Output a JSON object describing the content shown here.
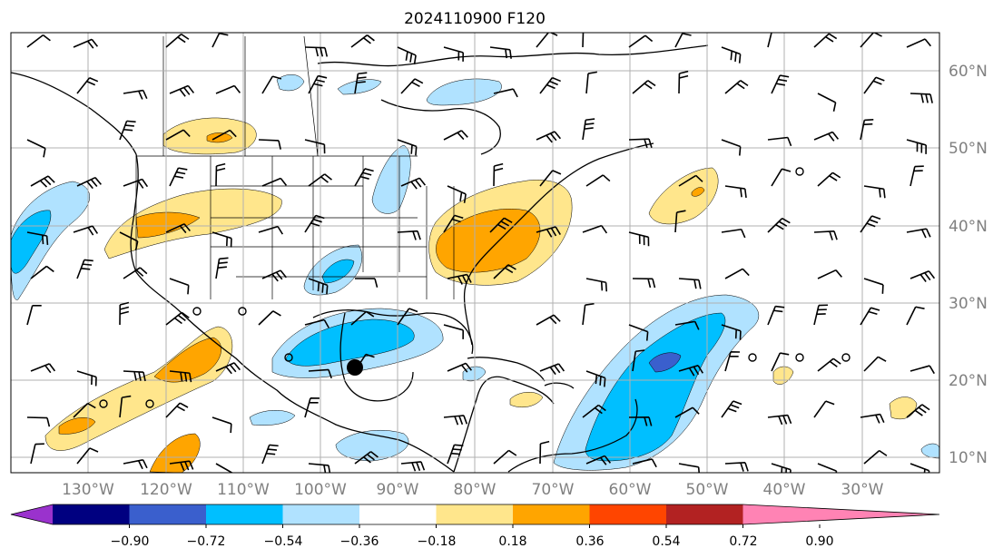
{
  "title": "2024110900 F120",
  "lat_labels": [
    "60°N",
    "50°N",
    "40°N",
    "30°N",
    "20°N",
    "10°N"
  ],
  "lon_labels": [
    "130°W",
    "120°W",
    "110°W",
    "100°W",
    "90°W",
    "80°W",
    "70°W",
    "60°W",
    "50°W",
    "40°W",
    "30°W"
  ],
  "colorbar": {
    "ticks": [
      "−0.90",
      "−0.72",
      "−0.54",
      "−0.36",
      "−0.18",
      "0.18",
      "0.36",
      "0.54",
      "0.72",
      "0.90"
    ],
    "colors": [
      "#9a32cd",
      "#000080",
      "#3a5fcd",
      "#00bfff",
      "#b0e2ff",
      "#ffffff",
      "#ffe68c",
      "#ffa500",
      "#ff4500",
      "#b22222",
      "#ff83b4"
    ]
  },
  "colors": {
    "gridline": "#b0b0b0",
    "coast": "#000000",
    "axis_label": "#808080"
  }
}
